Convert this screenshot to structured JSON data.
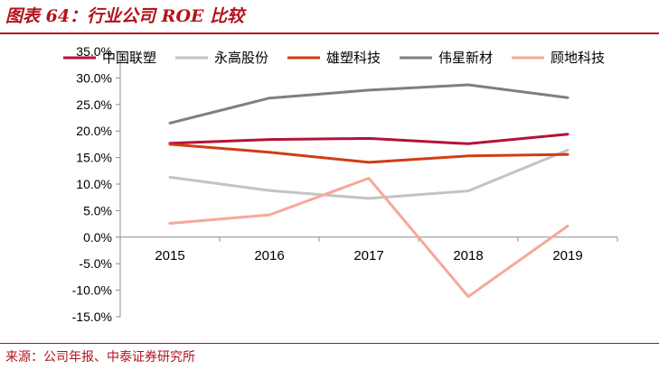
{
  "title": "图表 64：行业公司 ROE 比较",
  "source": "来源：公司年报、中泰证券研究所",
  "chart_data": {
    "type": "line",
    "categories": [
      "2015",
      "2016",
      "2017",
      "2018",
      "2019"
    ],
    "ylim": [
      -15,
      35
    ],
    "yticks": [
      "35.0%",
      "30.0%",
      "25.0%",
      "20.0%",
      "15.0%",
      "10.0%",
      "5.0%",
      "0.0%",
      "-5.0%",
      "-10.0%",
      "-15.0%"
    ],
    "grid": false,
    "legend_position": "top",
    "series": [
      {
        "name": "中国联塑",
        "color": "#b5113a",
        "values": [
          17.7,
          18.4,
          18.6,
          17.6,
          19.4
        ]
      },
      {
        "name": "永高股份",
        "color": "#c3c3c3",
        "values": [
          11.3,
          8.8,
          7.3,
          8.7,
          16.4
        ]
      },
      {
        "name": "雄塑科技",
        "color": "#d23c12",
        "values": [
          17.5,
          16.0,
          14.1,
          15.3,
          15.6
        ]
      },
      {
        "name": "伟星新材",
        "color": "#7f7f7f",
        "values": [
          21.5,
          26.2,
          27.7,
          28.7,
          26.3
        ]
      },
      {
        "name": "顾地科技",
        "color": "#f7a79a",
        "values": [
          2.6,
          4.2,
          11.1,
          -11.2,
          2.1
        ]
      }
    ]
  }
}
